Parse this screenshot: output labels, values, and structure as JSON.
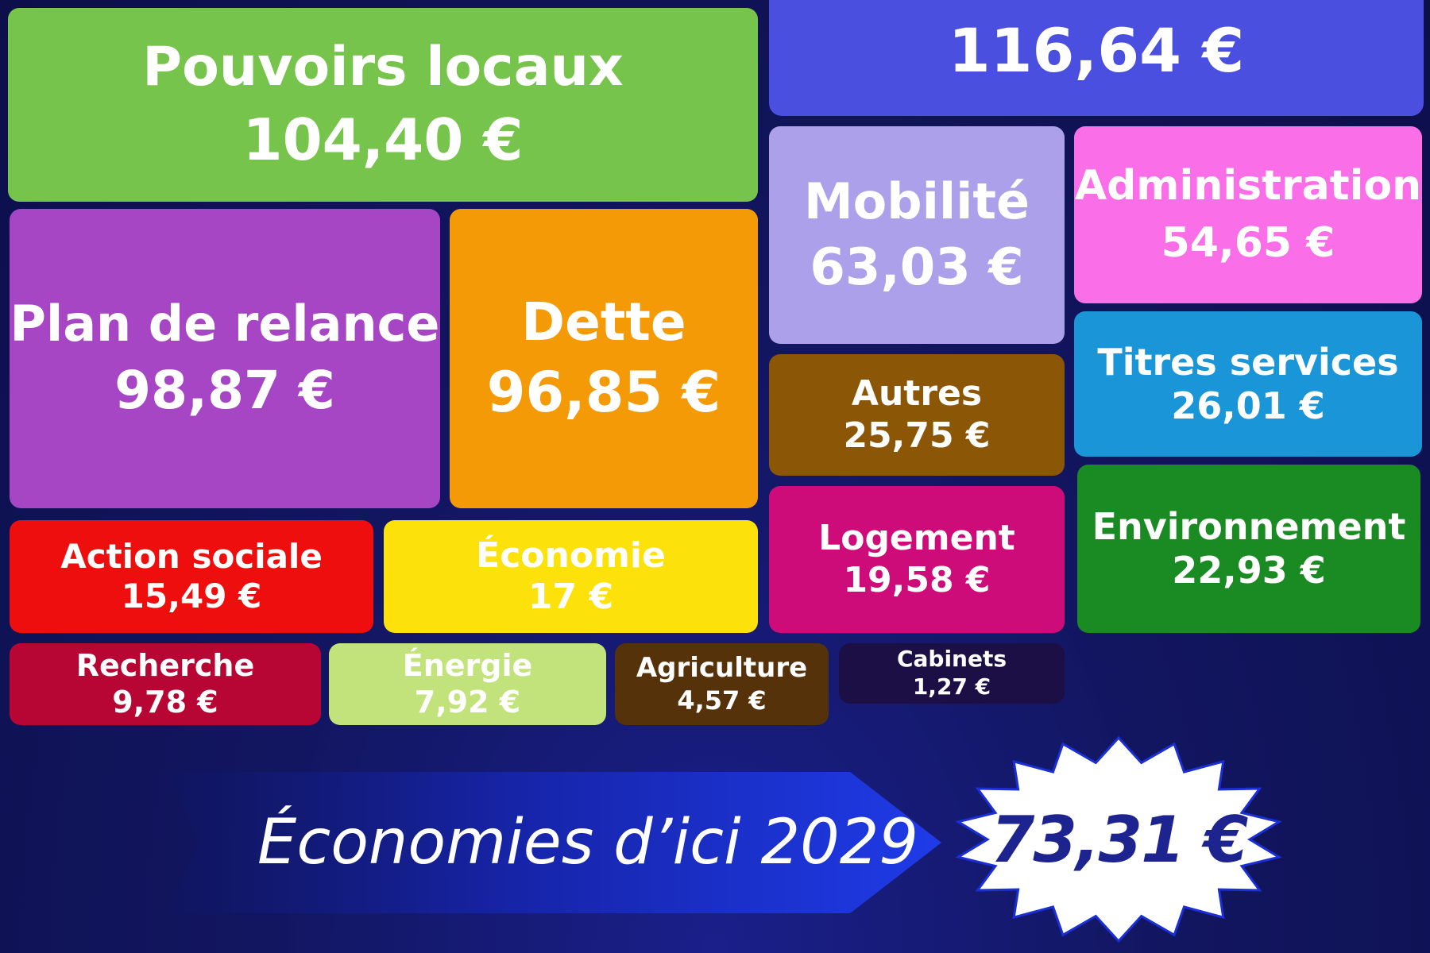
{
  "chart_data": {
    "type": "treemap",
    "unit": "€",
    "items": [
      {
        "label": "",
        "value": 116.64,
        "value_text": "116,64 €",
        "color": "#4a4fe0"
      },
      {
        "label": "Pouvoirs locaux",
        "value": 104.4,
        "value_text": "104,40 €",
        "color": "#76c44c"
      },
      {
        "label": "Plan de relance",
        "value": 98.87,
        "value_text": "98,87 €",
        "color": "#a646c4"
      },
      {
        "label": "Dette",
        "value": 96.85,
        "value_text": "96,85 €",
        "color": "#f49a06"
      },
      {
        "label": "Mobilité",
        "value": 63.03,
        "value_text": "63,03 €",
        "color": "#aca0ea"
      },
      {
        "label": "Administration",
        "value": 54.65,
        "value_text": "54,65 €",
        "color": "#fa6ee8"
      },
      {
        "label": "Titres services",
        "value": 26.01,
        "value_text": "26,01 €",
        "color": "#1a96d8"
      },
      {
        "label": "Autres",
        "value": 25.75,
        "value_text": "25,75 €",
        "color": "#8b5706"
      },
      {
        "label": "Environnement",
        "value": 22.93,
        "value_text": "22,93 €",
        "color": "#1a8a22"
      },
      {
        "label": "Logement",
        "value": 19.58,
        "value_text": "19,58 €",
        "color": "#cd0c7a"
      },
      {
        "label": "Économie",
        "value": 17,
        "value_text": "17 €",
        "color": "#fde10b"
      },
      {
        "label": "Action sociale",
        "value": 15.49,
        "value_text": "15,49 €",
        "color": "#ee0e0e"
      },
      {
        "label": "Recherche",
        "value": 9.78,
        "value_text": "9,78 €",
        "color": "#b70534"
      },
      {
        "label": "Énergie",
        "value": 7.92,
        "value_text": "7,92 €",
        "color": "#c2e37c"
      },
      {
        "label": "Agriculture",
        "value": 4.57,
        "value_text": "4,57 €",
        "color": "#55320a"
      },
      {
        "label": "Cabinets",
        "value": 1.27,
        "value_text": "1,27 €",
        "color": "#1c0f45"
      }
    ]
  },
  "banner": {
    "text": "Économies d’ici 2029",
    "value_text": "73,31 €"
  },
  "colors": {
    "background": "#121660",
    "banner_arrow": "#1a2fd6",
    "burst_fill": "#ffffff",
    "burst_text": "#1d248f"
  }
}
